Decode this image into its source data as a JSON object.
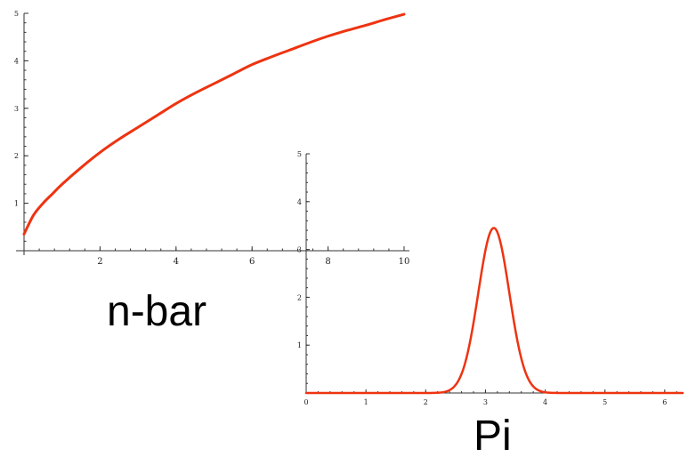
{
  "chart_data": [
    {
      "type": "line",
      "title": "",
      "label": "n-bar",
      "xlim": [
        0,
        10
      ],
      "ylim": [
        0,
        5
      ],
      "x_ticks": [
        2,
        4,
        6,
        8,
        10
      ],
      "y_ticks": [
        1,
        2,
        3,
        4,
        5
      ],
      "x_tick_labels": [
        "2",
        "4",
        "6",
        "8",
        "10"
      ],
      "y_tick_labels": [
        "1",
        "2",
        "3",
        "4",
        "5"
      ],
      "x": [
        0,
        0.25,
        0.5,
        0.75,
        1,
        1.5,
        2,
        2.5,
        3,
        3.5,
        4,
        4.5,
        5,
        5.5,
        6,
        6.5,
        7,
        7.5,
        8,
        8.5,
        9,
        9.5,
        10
      ],
      "values": [
        0.35,
        0.75,
        1.0,
        1.2,
        1.4,
        1.75,
        2.07,
        2.35,
        2.6,
        2.85,
        3.1,
        3.32,
        3.52,
        3.72,
        3.92,
        4.08,
        4.23,
        4.38,
        4.52,
        4.64,
        4.75,
        4.87,
        4.98
      ],
      "color": "#ee3311"
    },
    {
      "type": "line",
      "title": "",
      "label": "Pi",
      "xlim": [
        0,
        6.3
      ],
      "ylim": [
        0,
        5
      ],
      "x_ticks": [
        0,
        1,
        2,
        3,
        4,
        5,
        6
      ],
      "y_ticks": [
        1,
        2,
        3,
        4,
        5
      ],
      "x_tick_labels": [
        "0",
        "1",
        "2",
        "3",
        "4",
        "5",
        "6"
      ],
      "y_tick_labels": [
        "1",
        "2",
        "3",
        "4",
        "5"
      ],
      "peak_x": 3.14,
      "peak_y": 3.45,
      "width_sigma": 0.26,
      "color": "#ee3311"
    }
  ]
}
